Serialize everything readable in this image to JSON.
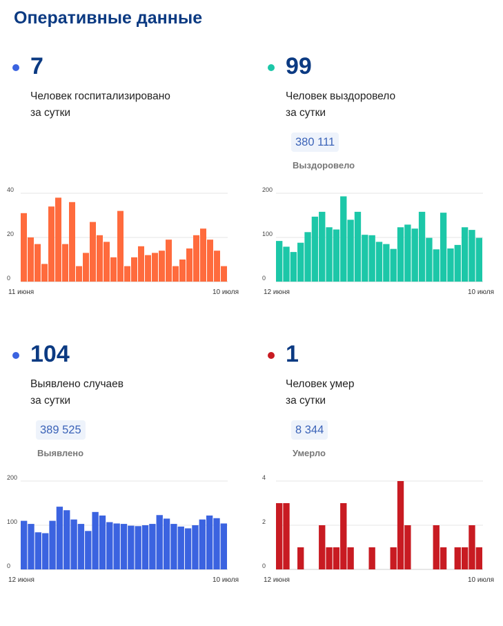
{
  "page_title": "Оперативные данные",
  "cards": [
    {
      "dot_color": "#3b63e0",
      "value": "7",
      "desc_line1": "Человек госпитализировано",
      "desc_line2": "за сутки",
      "pill": "",
      "pill_label": ""
    },
    {
      "dot_color": "#1cc7a8",
      "value": "99",
      "desc_line1": "Человек выздоровело",
      "desc_line2": "за сутки",
      "pill": "380 111",
      "pill_label": "Выздоровело"
    },
    {
      "dot_color": "#3b63e0",
      "value": "104",
      "desc_line1": "Выявлено случаев",
      "desc_line2": "за сутки",
      "pill": "389 525",
      "pill_label": "Выявлено"
    },
    {
      "dot_color": "#c81b22",
      "value": "1",
      "desc_line1": "Человек умер",
      "desc_line2": "за сутки",
      "pill": "8 344",
      "pill_label": "Умерло"
    }
  ],
  "chart_data": [
    {
      "type": "bar",
      "color": "#ff6b3d",
      "ylim": [
        0,
        40
      ],
      "yticks": [
        "0",
        "20",
        "40"
      ],
      "x_start_label": "11 июня",
      "x_end_label": "10 июля",
      "values": [
        31,
        20,
        17,
        8,
        34,
        38,
        17,
        36,
        7,
        13,
        27,
        21,
        18,
        11,
        32,
        7,
        11,
        16,
        12,
        13,
        14,
        19,
        7,
        10,
        15,
        21,
        24,
        19,
        14,
        7
      ]
    },
    {
      "type": "bar",
      "color": "#1cc7a8",
      "ylim": [
        0,
        200
      ],
      "yticks": [
        "0",
        "100",
        "200"
      ],
      "x_start_label": "12 июня",
      "x_end_label": "10 июля",
      "values": [
        92,
        79,
        67,
        88,
        112,
        147,
        158,
        123,
        118,
        193,
        140,
        158,
        106,
        105,
        90,
        85,
        74,
        123,
        129,
        120,
        158,
        99,
        73,
        156,
        75,
        83,
        123,
        117,
        99
      ]
    },
    {
      "type": "bar",
      "color": "#3b63e0",
      "ylim": [
        0,
        200
      ],
      "yticks": [
        "0",
        "100",
        "200"
      ],
      "x_start_label": "12 июня",
      "x_end_label": "10 июля",
      "values": [
        110,
        103,
        84,
        82,
        110,
        142,
        134,
        113,
        103,
        87,
        130,
        122,
        107,
        104,
        103,
        99,
        98,
        100,
        103,
        123,
        115,
        103,
        97,
        93,
        100,
        113,
        122,
        116,
        104
      ]
    },
    {
      "type": "bar",
      "color": "#c81b22",
      "ylim": [
        0,
        4
      ],
      "yticks": [
        "0",
        "2",
        "4"
      ],
      "x_start_label": "12 июня",
      "x_end_label": "10 июля",
      "values": [
        3,
        3,
        0,
        1,
        0,
        0,
        2,
        1,
        1,
        3,
        1,
        0,
        0,
        1,
        0,
        0,
        1,
        4,
        2,
        0,
        0,
        0,
        2,
        1,
        0,
        1,
        1,
        2,
        1
      ]
    }
  ]
}
